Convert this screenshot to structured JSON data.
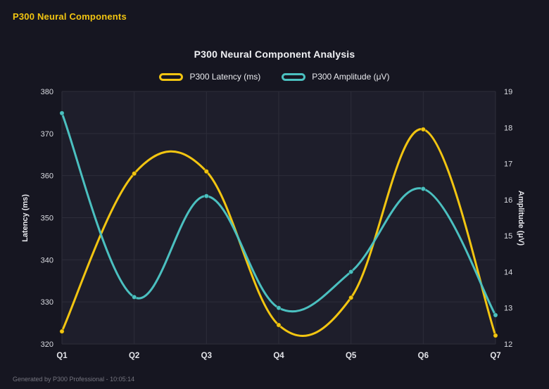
{
  "header": {
    "title": "P300 Neural Components"
  },
  "footer": {
    "text": "Generated by P300 Professional - 10:05:14"
  },
  "chart_data": {
    "type": "line",
    "title": "P300 Neural Component Analysis",
    "categories": [
      "Q1",
      "Q2",
      "Q3",
      "Q4",
      "Q5",
      "Q6",
      "Q7"
    ],
    "series": [
      {
        "id": "latency",
        "name": "P300 Latency (ms)",
        "axis": "left",
        "color": "#f2c511",
        "values": [
          323,
          360.5,
          361,
          324.5,
          331,
          371,
          322
        ]
      },
      {
        "id": "amplitude",
        "name": "P300 Amplitude (μV)",
        "axis": "right",
        "color": "#4bc0c0",
        "values": [
          18.4,
          13.3,
          16.1,
          13.0,
          14.0,
          16.3,
          12.8
        ]
      }
    ],
    "left_axis": {
      "label": "Latency (ms)",
      "min": 320,
      "max": 380,
      "ticks": [
        320,
        330,
        340,
        350,
        360,
        370,
        380
      ]
    },
    "right_axis": {
      "label": "Amplitude (μV)",
      "min": 12,
      "max": 19,
      "ticks": [
        12,
        13,
        14,
        15,
        16,
        17,
        18,
        19
      ]
    },
    "grid": true,
    "legend_position": "top",
    "smooth": true,
    "colors": {
      "background": "#161621",
      "plot_background": "#1e1e2b",
      "grid": "#2d2d3a",
      "text": "#e9eaee",
      "accent_yellow": "#f2c511",
      "accent_teal": "#4bc0c0"
    }
  }
}
